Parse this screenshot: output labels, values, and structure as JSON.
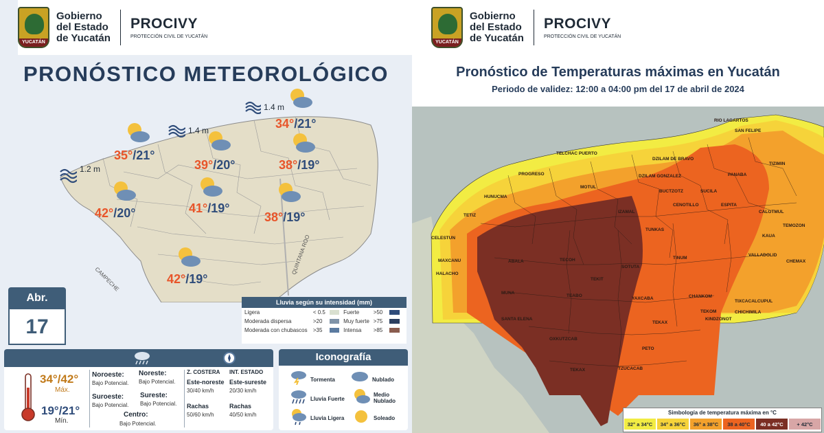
{
  "left": {
    "header": {
      "gov_line1": "Gobierno",
      "gov_line2": "del Estado",
      "gov_line3": "de Yucatán",
      "seal_text": "YUCATÁN",
      "procivy": "PROCIVY",
      "procivy_sub": "PROTECCIÓN CIVIL DE YUCATÁN"
    },
    "title": "PRONÓSTICO METEOROLÓGICO",
    "waves": [
      "1.2 m",
      "1.4 m",
      "1.4 m"
    ],
    "cities": [
      {
        "max": "34°",
        "min": "/21°"
      },
      {
        "max": "35°",
        "min": "/21°"
      },
      {
        "max": "39°",
        "min": "/20°"
      },
      {
        "max": "38°",
        "min": "/19°"
      },
      {
        "max": "42°",
        "min": "/20°"
      },
      {
        "max": "41°",
        "min": "/19°"
      },
      {
        "max": "38°",
        "min": "/19°"
      },
      {
        "max": "42°",
        "min": "/19°"
      }
    ],
    "map_labels": {
      "campeche": "CAMPECHE",
      "quintana_roo": "QUINTANA ROO"
    },
    "date": {
      "month": "Abr.",
      "day": "17"
    },
    "rain_legend": {
      "title": "Lluvia según su intensidad (mm)",
      "rows": [
        {
          "a_label": "Ligera",
          "a_val": "< 0.5",
          "a_color": "#d9e0d0",
          "b_label": "Fuerte",
          "b_val": ">50",
          "b_color": "#2f4c7a"
        },
        {
          "a_label": "Moderada dispersa",
          "a_val": ">20",
          "a_color": "#7f93a8",
          "b_label": "Muy fuerte",
          "b_val": ">75",
          "b_color": "#2b3f60"
        },
        {
          "a_label": "Moderada con chubascos",
          "a_val": ">35",
          "a_color": "#5b7ba0",
          "b_label": "Intensa",
          "b_val": ">85",
          "b_color": "#8a5d4f"
        }
      ]
    },
    "info": {
      "temp_max": "34°/42°",
      "max_label": "Máx.",
      "temp_min": "19°/21°",
      "min_label": "Mín.",
      "noroeste": "Noroeste:",
      "noroeste_val": "Bajo Potencial.",
      "noreste": "Noreste:",
      "noreste_val": "Bajo Potencial.",
      "suroeste": "Suroeste:",
      "suroeste_val": "Bajo Potencial.",
      "sureste": "Sureste:",
      "sureste_val": "Bajo Potencial.",
      "centro": "Centro:",
      "centro_val": "Bajo Potencial.",
      "z_costera": "Z. COSTERA",
      "int_estado": "INT. ESTADO",
      "wind_dir_1": "Este-noreste",
      "wind_sp_1": "30/40 km/h",
      "wind_dir_2": "Este-sureste",
      "wind_sp_2": "20/30 km/h",
      "rachas": "Rachas",
      "rachas_1": "50/60 km/h",
      "rachas_2": "40/50 km/h"
    },
    "iconografia": {
      "title": "Iconografía",
      "items": [
        "Tormenta",
        "Nublado",
        "Lluvia Fuerte",
        "Medio Nublado",
        "Lluvia Ligera",
        "Soleado"
      ]
    }
  },
  "right": {
    "header": {
      "gov_line1": "Gobierno",
      "gov_line2": "del Estado",
      "gov_line3": "de Yucatán",
      "seal_text": "YUCATÁN",
      "procivy": "PROCIVY",
      "procivy_sub": "PROTECCIÓN CIVIL DE YUCATÁN"
    },
    "title": "Pronóstico de Temperaturas máximas en Yucatán",
    "subtitle": "Periodo de validez: 12:00 a 04:00 pm del 17 de abril de 2024",
    "municipalities": [
      "RIO LAGARTOS",
      "SAN FELIPE",
      "TELCHAC PUERTO",
      "DZILAM DE BRAVO",
      "PROGRESO",
      "DZILAM GONZALEZ",
      "PANABA",
      "TIZIMIN",
      "BUCTZOTZ",
      "SUCILA",
      "HUNUCMA",
      "MOTUL",
      "CENOTILLO",
      "ESPITA",
      "CALOTMUL",
      "TETIZ",
      "IZAMAL",
      "TEMOZON",
      "CELESTUN",
      "TUNKAS",
      "CHEMAX",
      "MAXCANU",
      "ABALA",
      "TINUM",
      "VALLADOLID",
      "HALACHO",
      "TECOH",
      "KAUA",
      "SOTUTA",
      "TEKIT",
      "YAXCABA",
      "CHANKOM",
      "TEKOM",
      "CHICHIMILA",
      "MUNA",
      "TEABO",
      "TIXCACALCUPUL",
      "SANTA ELENA",
      "TEKAX",
      "KINDZONOT",
      "OXKUTZCAB",
      "PETO",
      "TZUCACAB",
      "TEKAX"
    ],
    "legend": {
      "title": "Simbología de temperatura máxima en °C",
      "items": [
        {
          "label": "32° a 34°C",
          "color": "#f2ec43"
        },
        {
          "label": "34° a 36°C",
          "color": "#f6d33a"
        },
        {
          "label": "36° a 38°C",
          "color": "#f3a12c"
        },
        {
          "label": "38 a 40°C",
          "color": "#ec6420"
        },
        {
          "label": "40 a 42°C",
          "color": "#7b2f24"
        },
        {
          "label": "+ 42°C",
          "color": "#d8a6a6"
        }
      ]
    }
  }
}
